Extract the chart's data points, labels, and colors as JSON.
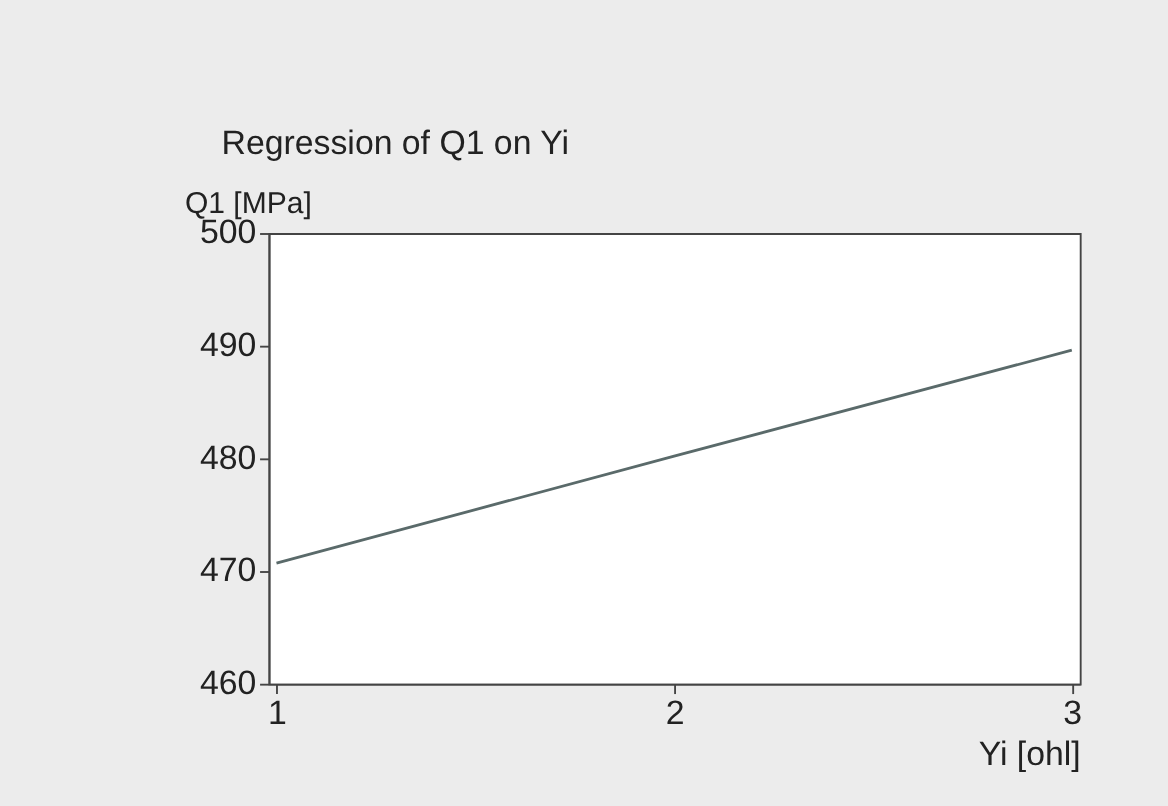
{
  "chart_data": {
    "type": "line",
    "title": "Regression of Q1 on Yi",
    "xlabel": "Yi [ohl]",
    "ylabel": "Q1 [MPa]",
    "x": [
      1,
      2,
      3
    ],
    "series": [
      {
        "color": "#5a6a6a",
        "values": [
          470.7,
          480.2,
          489.6
        ]
      }
    ],
    "xlim": [
      0.98,
      3.02
    ],
    "xticks": [
      1,
      2,
      3
    ],
    "ylim": [
      460,
      500
    ],
    "yticks": [
      460,
      470,
      480,
      490,
      500
    ],
    "line_style": "solid",
    "grid": false
  }
}
